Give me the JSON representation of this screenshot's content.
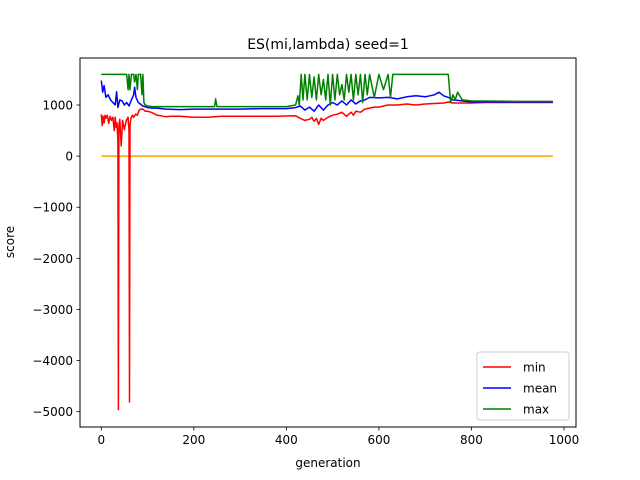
{
  "chart_data": {
    "type": "line",
    "title": "ES(mi,lambda) seed=1",
    "xlabel": "generation",
    "ylabel": "score",
    "xlim": [
      -46,
      1026
    ],
    "ylim": [
      -5300,
      1920
    ],
    "xticks": [
      0,
      200,
      400,
      600,
      800,
      1000
    ],
    "xtick_labels": [
      "0",
      "200",
      "400",
      "600",
      "800",
      "1000"
    ],
    "yticks": [
      -5000,
      -4000,
      -3000,
      -2000,
      -1000,
      0,
      1000
    ],
    "ytick_labels": [
      "−5000",
      "−4000",
      "−3000",
      "−2000",
      "−1000",
      "0",
      "1000"
    ],
    "grid": false,
    "legend_position": "lower right",
    "series": [
      {
        "name": "",
        "color": "#ffa500",
        "in_legend": false,
        "x": [
          0,
          976
        ],
        "y": [
          0,
          0
        ]
      },
      {
        "name": "min",
        "color": "#ff0000",
        "in_legend": true,
        "x": [
          0,
          2,
          4,
          6,
          8,
          10,
          13,
          16,
          19,
          22,
          25,
          28,
          30,
          32,
          34,
          36,
          37,
          38,
          40,
          43,
          46,
          50,
          54,
          58,
          60,
          61,
          62,
          64,
          67,
          70,
          74,
          78,
          82,
          85,
          90,
          95,
          100,
          110,
          120,
          130,
          140,
          150,
          170,
          200,
          230,
          260,
          300,
          340,
          380,
          420,
          430,
          440,
          450,
          455,
          460,
          465,
          470,
          475,
          480,
          490,
          500,
          510,
          520,
          530,
          540,
          545,
          550,
          560,
          570,
          580,
          590,
          600,
          610,
          620,
          640,
          660,
          680,
          700,
          720,
          740,
          750,
          760,
          780,
          800,
          830,
          860,
          900,
          940,
          976
        ],
        "y": [
          820,
          600,
          780,
          650,
          800,
          740,
          800,
          640,
          780,
          700,
          760,
          500,
          760,
          560,
          650,
          300,
          -4960,
          600,
          720,
          200,
          700,
          520,
          700,
          760,
          500,
          -4810,
          600,
          740,
          800,
          760,
          820,
          800,
          900,
          920,
          920,
          880,
          880,
          850,
          800,
          790,
          770,
          780,
          780,
          760,
          760,
          780,
          780,
          780,
          780,
          790,
          740,
          700,
          720,
          760,
          680,
          740,
          620,
          740,
          700,
          760,
          800,
          820,
          860,
          780,
          860,
          800,
          880,
          860,
          920,
          940,
          960,
          960,
          980,
          1000,
          1000,
          1020,
          1000,
          1020,
          1030,
          1040,
          1060,
          1040,
          1040,
          1040,
          1050,
          1050,
          1050,
          1050,
          1050
        ]
      },
      {
        "name": "mean",
        "color": "#0000ff",
        "in_legend": true,
        "x": [
          0,
          3,
          6,
          10,
          15,
          20,
          25,
          30,
          33,
          36,
          40,
          45,
          50,
          55,
          60,
          65,
          70,
          72,
          75,
          80,
          90,
          100,
          110,
          120,
          140,
          170,
          200,
          250,
          300,
          350,
          400,
          420,
          430,
          440,
          450,
          460,
          470,
          480,
          490,
          500,
          510,
          520,
          530,
          540,
          550,
          560,
          570,
          580,
          600,
          620,
          640,
          660,
          680,
          700,
          720,
          730,
          740,
          750,
          760,
          780,
          800,
          850,
          900,
          976
        ],
        "y": [
          1480,
          1250,
          1380,
          1150,
          1200,
          1100,
          1050,
          1000,
          1260,
          950,
          1100,
          1080,
          1000,
          1050,
          980,
          1100,
          1200,
          1350,
          1150,
          1050,
          980,
          950,
          940,
          940,
          920,
          910,
          920,
          920,
          920,
          930,
          930,
          950,
          980,
          900,
          960,
          880,
          1000,
          900,
          1000,
          1050,
          1000,
          1080,
          1000,
          1100,
          1020,
          1080,
          1100,
          1150,
          1140,
          1150,
          1120,
          1160,
          1180,
          1160,
          1200,
          1250,
          1180,
          1150,
          1100,
          1080,
          1060,
          1060,
          1060,
          1060
        ]
      },
      {
        "name": "max",
        "color": "#008000",
        "in_legend": true,
        "x": [
          0,
          20,
          40,
          55,
          58,
          60,
          62,
          65,
          68,
          70,
          72,
          75,
          78,
          80,
          85,
          88,
          90,
          92,
          95,
          100,
          110,
          150,
          200,
          245,
          247,
          250,
          300,
          350,
          400,
          420,
          425,
          428,
          432,
          436,
          440,
          445,
          450,
          455,
          460,
          465,
          470,
          475,
          480,
          485,
          490,
          495,
          500,
          505,
          510,
          515,
          520,
          525,
          530,
          535,
          540,
          545,
          550,
          555,
          560,
          565,
          570,
          575,
          580,
          590,
          600,
          610,
          620,
          625,
          630,
          635,
          640,
          700,
          745,
          750,
          755,
          760,
          765,
          770,
          780,
          800,
          900,
          976
        ],
        "y": [
          1600,
          1600,
          1600,
          1600,
          1300,
          1600,
          1300,
          1600,
          1600,
          1600,
          1450,
          1600,
          1300,
          1600,
          1600,
          1200,
          1600,
          1050,
          1000,
          980,
          970,
          970,
          970,
          970,
          1120,
          970,
          970,
          970,
          970,
          1000,
          1180,
          1000,
          1600,
          1100,
          1600,
          1100,
          1600,
          1150,
          1550,
          1100,
          1600,
          1200,
          1500,
          1100,
          1600,
          1000,
          1600,
          1100,
          1600,
          1200,
          1400,
          1100,
          1600,
          1250,
          1600,
          1100,
          1600,
          1200,
          1600,
          1050,
          1600,
          1200,
          1600,
          1150,
          1600,
          1300,
          1600,
          1150,
          1600,
          1600,
          1600,
          1600,
          1600,
          1600,
          1050,
          1200,
          1100,
          1250,
          1100,
          1080,
          1070,
          1070
        ]
      }
    ]
  }
}
